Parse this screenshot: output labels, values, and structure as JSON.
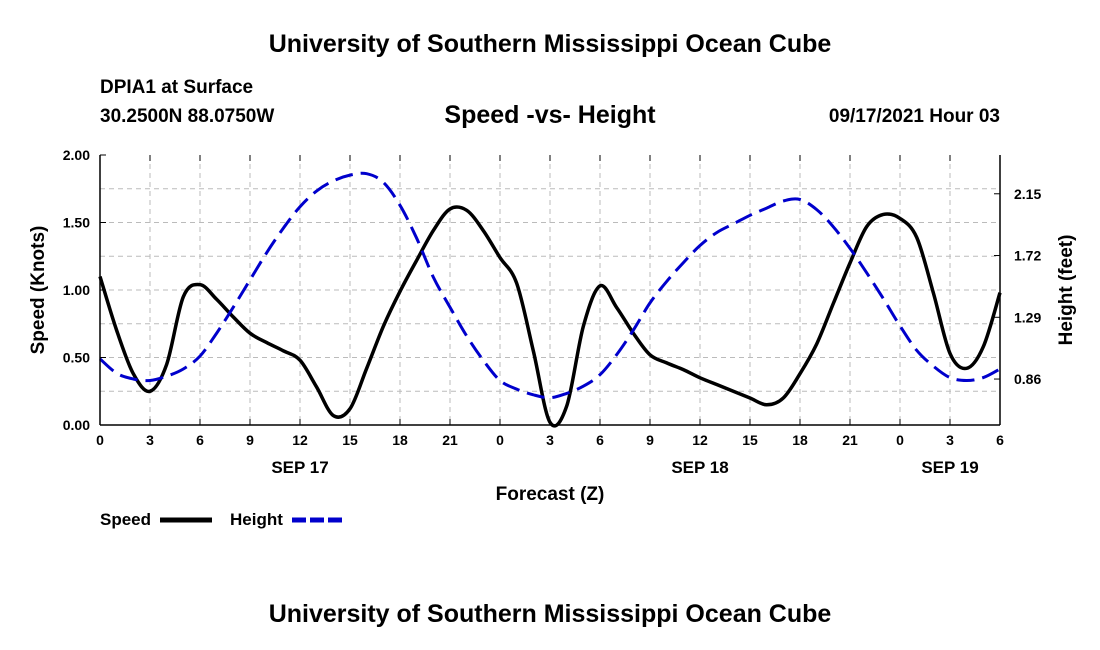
{
  "header": {
    "title_top": "University of Southern Mississippi Ocean Cube",
    "station": "DPIA1 at Surface",
    "coords": "30.2500N  88.0750W",
    "subtitle": "Speed -vs- Height",
    "date": "09/17/2021 Hour 03",
    "title_bottom": "University of Southern Mississippi Ocean Cube"
  },
  "colors": {
    "speed": "#000000",
    "height": "#0000cc",
    "grid": "#bbbbbb"
  },
  "chart_data": {
    "type": "line",
    "title": "Speed -vs- Height",
    "xlabel": "Forecast (Z)",
    "ylabel_left": "Speed (Knots)",
    "ylabel_right": "Height (feet)",
    "x_range_hours": [
      0,
      54
    ],
    "x_ticks": [
      {
        "h": 0,
        "label": "0"
      },
      {
        "h": 3,
        "label": "3"
      },
      {
        "h": 6,
        "label": "6"
      },
      {
        "h": 9,
        "label": "9"
      },
      {
        "h": 12,
        "label": "12"
      },
      {
        "h": 15,
        "label": "15"
      },
      {
        "h": 18,
        "label": "18"
      },
      {
        "h": 21,
        "label": "21"
      },
      {
        "h": 24,
        "label": "0"
      },
      {
        "h": 27,
        "label": "3"
      },
      {
        "h": 30,
        "label": "6"
      },
      {
        "h": 33,
        "label": "9"
      },
      {
        "h": 36,
        "label": "12"
      },
      {
        "h": 39,
        "label": "15"
      },
      {
        "h": 42,
        "label": "18"
      },
      {
        "h": 45,
        "label": "21"
      },
      {
        "h": 48,
        "label": "0"
      },
      {
        "h": 51,
        "label": "3"
      },
      {
        "h": 54,
        "label": "6"
      }
    ],
    "date_labels": [
      {
        "h": 12,
        "label": "SEP 17"
      },
      {
        "h": 36,
        "label": "SEP 18"
      },
      {
        "h": 51,
        "label": "SEP 19"
      }
    ],
    "ylim_left": [
      0,
      2
    ],
    "y_ticks_left": [
      "0.00",
      "0.50",
      "1.00",
      "1.50",
      "2.00"
    ],
    "ylim_right": [
      0.54,
      2.42
    ],
    "y_ticks_right": [
      "0.86",
      "1.29",
      "1.72",
      "2.15"
    ],
    "grid": true,
    "legend_position": "bottom-left",
    "series": [
      {
        "name": "Speed",
        "axis": "left",
        "style": "solid",
        "points": [
          [
            0,
            1.1
          ],
          [
            1,
            0.7
          ],
          [
            2,
            0.38
          ],
          [
            3,
            0.25
          ],
          [
            4,
            0.45
          ],
          [
            5,
            0.95
          ],
          [
            6,
            1.04
          ],
          [
            7,
            0.93
          ],
          [
            8,
            0.8
          ],
          [
            9,
            0.68
          ],
          [
            10,
            0.61
          ],
          [
            11,
            0.55
          ],
          [
            12,
            0.48
          ],
          [
            13,
            0.28
          ],
          [
            14,
            0.07
          ],
          [
            15,
            0.12
          ],
          [
            16,
            0.42
          ],
          [
            17,
            0.73
          ],
          [
            18,
            0.99
          ],
          [
            19,
            1.22
          ],
          [
            20,
            1.44
          ],
          [
            21,
            1.6
          ],
          [
            22,
            1.59
          ],
          [
            23,
            1.44
          ],
          [
            24,
            1.24
          ],
          [
            25,
            1.05
          ],
          [
            26,
            0.55
          ],
          [
            27,
            0.02
          ],
          [
            28,
            0.14
          ],
          [
            29,
            0.73
          ],
          [
            30,
            1.03
          ],
          [
            31,
            0.87
          ],
          [
            32,
            0.68
          ],
          [
            33,
            0.52
          ],
          [
            34,
            0.46
          ],
          [
            35,
            0.41
          ],
          [
            36,
            0.35
          ],
          [
            37,
            0.3
          ],
          [
            38,
            0.25
          ],
          [
            39,
            0.2
          ],
          [
            40,
            0.15
          ],
          [
            41,
            0.2
          ],
          [
            42,
            0.38
          ],
          [
            43,
            0.6
          ],
          [
            44,
            0.9
          ],
          [
            45,
            1.2
          ],
          [
            46,
            1.47
          ],
          [
            47,
            1.56
          ],
          [
            48,
            1.53
          ],
          [
            49,
            1.39
          ],
          [
            50,
            0.98
          ],
          [
            51,
            0.53
          ],
          [
            52,
            0.42
          ],
          [
            53,
            0.58
          ],
          [
            54,
            0.98
          ]
        ]
      },
      {
        "name": "Height",
        "axis": "right",
        "style": "dashed",
        "points": [
          [
            0,
            1.0
          ],
          [
            1,
            0.9
          ],
          [
            2,
            0.86
          ],
          [
            3,
            0.85
          ],
          [
            4,
            0.88
          ],
          [
            5,
            0.93
          ],
          [
            6,
            1.02
          ],
          [
            7,
            1.18
          ],
          [
            8,
            1.36
          ],
          [
            9,
            1.55
          ],
          [
            10,
            1.74
          ],
          [
            11,
            1.91
          ],
          [
            12,
            2.06
          ],
          [
            13,
            2.17
          ],
          [
            14,
            2.24
          ],
          [
            15,
            2.28
          ],
          [
            16,
            2.29
          ],
          [
            17,
            2.23
          ],
          [
            18,
            2.07
          ],
          [
            19,
            1.84
          ],
          [
            20,
            1.57
          ],
          [
            21,
            1.36
          ],
          [
            22,
            1.16
          ],
          [
            23,
            0.99
          ],
          [
            24,
            0.85
          ],
          [
            25,
            0.79
          ],
          [
            26,
            0.75
          ],
          [
            27,
            0.73
          ],
          [
            28,
            0.76
          ],
          [
            29,
            0.81
          ],
          [
            30,
            0.89
          ],
          [
            31,
            1.03
          ],
          [
            32,
            1.2
          ],
          [
            33,
            1.39
          ],
          [
            34,
            1.54
          ],
          [
            35,
            1.67
          ],
          [
            36,
            1.79
          ],
          [
            37,
            1.88
          ],
          [
            38,
            1.94
          ],
          [
            39,
            2.0
          ],
          [
            40,
            2.05
          ],
          [
            41,
            2.1
          ],
          [
            42,
            2.11
          ],
          [
            43,
            2.04
          ],
          [
            44,
            1.92
          ],
          [
            45,
            1.77
          ],
          [
            46,
            1.6
          ],
          [
            47,
            1.42
          ],
          [
            48,
            1.23
          ],
          [
            49,
            1.06
          ],
          [
            50,
            0.95
          ],
          [
            51,
            0.87
          ],
          [
            52,
            0.85
          ],
          [
            53,
            0.87
          ],
          [
            54,
            0.93
          ]
        ]
      }
    ]
  }
}
